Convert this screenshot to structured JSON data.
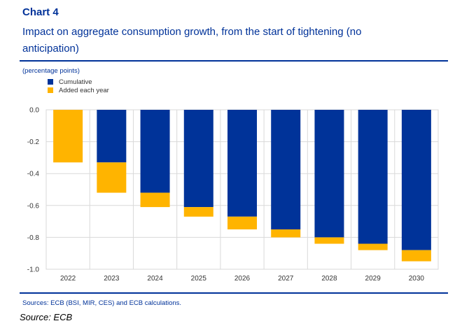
{
  "header": {
    "chart_label": "Chart 4",
    "title": "Impact on aggregate consumption growth, from the start of tightening (no anticipation)"
  },
  "unit_label": "(percentage points)",
  "footer": {
    "sources": "Sources: ECB (BSI, MIR, CES) and ECB calculations.",
    "credit": "Source: ECB"
  },
  "colors": {
    "brand": "#003299",
    "cumulative": "#003399",
    "added_each_year": "#FFB400",
    "grid": "#d9d9d9"
  },
  "chart_data": {
    "type": "bar",
    "stacked": true,
    "categories": [
      "2022",
      "2023",
      "2024",
      "2025",
      "2026",
      "2027",
      "2028",
      "2029",
      "2030"
    ],
    "series": [
      {
        "name": "Cumulative",
        "color": "#003399",
        "values": [
          0.0,
          -0.33,
          -0.52,
          -0.61,
          -0.67,
          -0.75,
          -0.8,
          -0.84,
          -0.88
        ]
      },
      {
        "name": "Added each year",
        "color": "#FFB400",
        "values": [
          -0.33,
          -0.19,
          -0.09,
          -0.06,
          -0.08,
          -0.05,
          -0.04,
          -0.04,
          -0.07
        ]
      }
    ],
    "ylim": [
      -1.0,
      0.0
    ],
    "yticks": [
      0.0,
      -0.2,
      -0.4,
      -0.6,
      -0.8,
      -1.0
    ],
    "ytick_labels": [
      "0.0",
      "-0.2",
      "-0.4",
      "-0.6",
      "-0.8",
      "-1.0"
    ],
    "legend_position": "top-left",
    "grid": true,
    "xlabel": "",
    "ylabel": "(percentage points)"
  }
}
